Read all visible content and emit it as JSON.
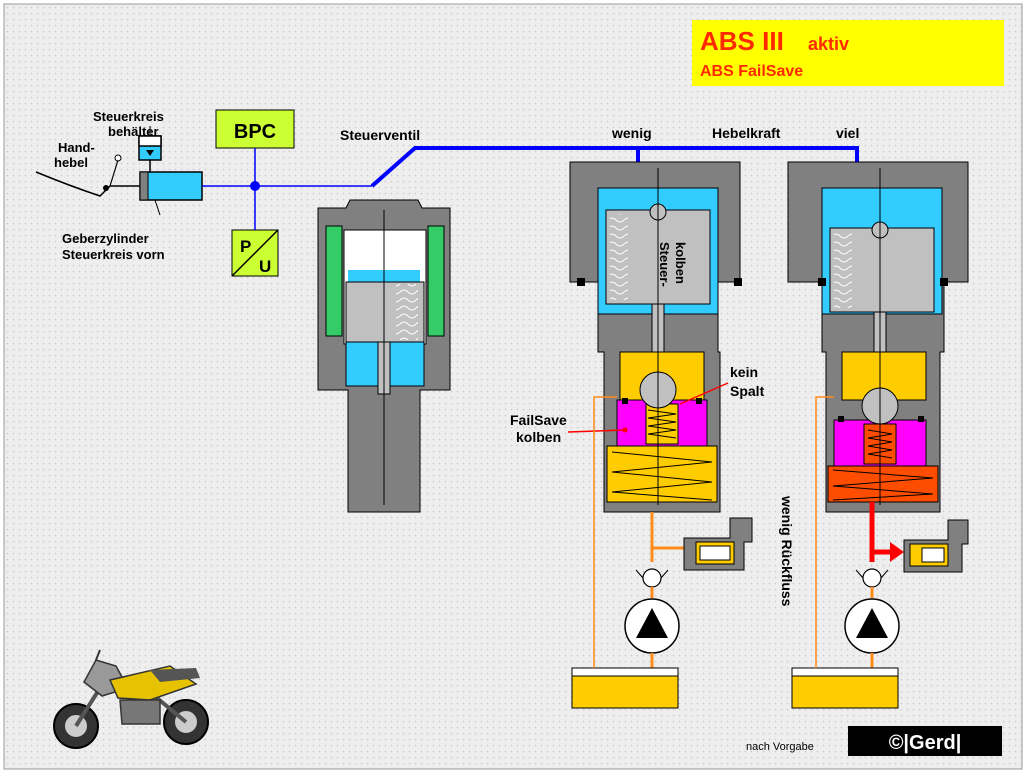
{
  "title_box": {
    "line1_main": "ABS III",
    "line1_suffix": "aktiv",
    "line2": "ABS FailSave"
  },
  "labels": {
    "steuerkreis_behaelter_1": "Steuerkreis",
    "steuerkreis_behaelter_2": "behälter",
    "handhebel_1": "Hand-",
    "handhebel_2": "hebel",
    "geberzylinder_1": "Geberzylinder",
    "geberzylinder_2": "Steuerkreis vorn",
    "bpc": "BPC",
    "pu_p": "P",
    "pu_u": "U",
    "steuerventil": "Steuerventil",
    "wenig": "wenig",
    "hebelkraft": "Hebelkraft",
    "viel": "viel",
    "steuerkolben_1": "Steuer-",
    "steuerkolben_2": "kolben",
    "kein_spalt_1": "kein",
    "kein_spalt_2": "Spalt",
    "failsave_1": "FailSave",
    "failsave_2": "kolben",
    "wenig_rueckfluss": "wenig Rückfluss",
    "nach_vorgabe": "nach Vorgabe",
    "logo": "©|Gerd|"
  },
  "colors": {
    "background_grid": "#e8e8e8",
    "title_box": "#ffff00",
    "title_text": "#ff2a00",
    "housing": "#808080",
    "fluid": "#33ccff",
    "control_line": "#0000ff",
    "oil": "#ffcc00",
    "failsave_piston": "#ff00ff",
    "pressure_line": "#ff0000",
    "return_line": "#ff8c1a",
    "bpc_box": "#ccff33",
    "valve_seal": "#33cc66"
  }
}
